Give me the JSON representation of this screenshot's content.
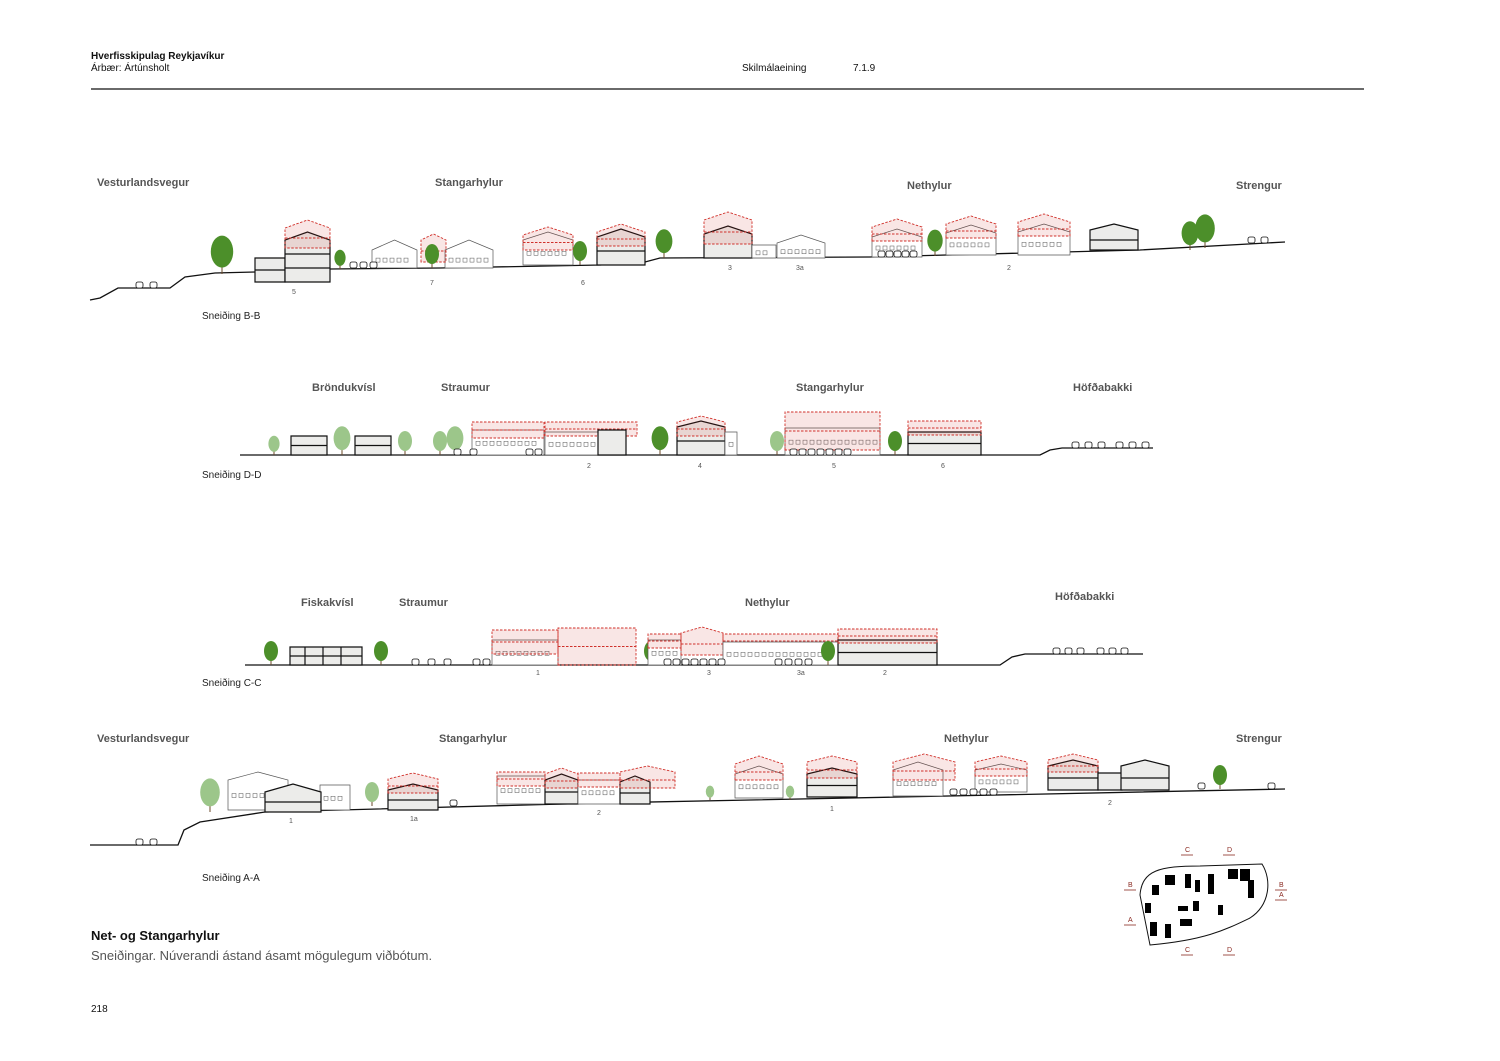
{
  "header": {
    "title": "Hverfisskipulag Reykjavíkur",
    "subtitle": "Árbær: Ártúnsholt",
    "unit_label": "Skilmálaeining",
    "unit_value": "7.1.9"
  },
  "sections": [
    {
      "name": "Sneiðing B-B",
      "streets": [
        "Vesturlandsvegur",
        "Stangarhylur",
        "Nethylur",
        "Strengur"
      ],
      "plots": [
        "5",
        "7",
        "6",
        "3",
        "3a",
        "2"
      ]
    },
    {
      "name": "Sneiðing D-D",
      "streets": [
        "Bröndukvísl",
        "Straumur",
        "Stangarhylur",
        "Höfðabakki"
      ],
      "plots": [
        "2",
        "4",
        "5",
        "6"
      ]
    },
    {
      "name": "Sneiðing C-C",
      "streets": [
        "Fiskakvísl",
        "Straumur",
        "Nethylur",
        "Höfðabakki"
      ],
      "plots": [
        "1",
        "3",
        "3a",
        "2"
      ]
    },
    {
      "name": "Sneiðing A-A",
      "streets": [
        "Vesturlandsvegur",
        "Stangarhylur",
        "Nethylur",
        "Strengur"
      ],
      "plots": [
        "1",
        "1a",
        "2",
        "1",
        "2"
      ]
    }
  ],
  "caption": {
    "title": "Net- og Stangarhylur",
    "subtitle": "Sneiðingar. Núverandi ástand ásamt mögulegum viðbótum."
  },
  "keymap": {
    "markers": [
      "B",
      "B",
      "A",
      "A",
      "C",
      "D",
      "C",
      "D"
    ]
  },
  "page_number": "218",
  "colors": {
    "addition": "#d0302a",
    "building": "#ececea",
    "tree": "#4c8f2a",
    "tree_light": "#9cc68a",
    "ink": "#111111"
  }
}
